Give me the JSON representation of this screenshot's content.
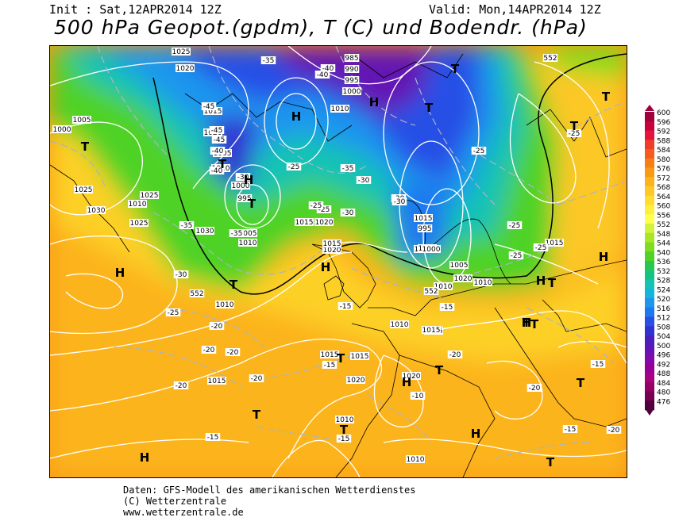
{
  "header": {
    "init": "Init : Sat,12APR2014 12Z",
    "valid": "Valid: Mon,14APR2014 12Z",
    "title": "500 hPa Geopot.(gpdm), T (C) und Bodendr. (hPa)"
  },
  "colorbar": {
    "levels": [
      "600",
      "596",
      "592",
      "588",
      "584",
      "580",
      "576",
      "572",
      "568",
      "564",
      "560",
      "556",
      "552",
      "548",
      "544",
      "540",
      "536",
      "532",
      "528",
      "524",
      "520",
      "516",
      "512",
      "508",
      "504",
      "500",
      "496",
      "492",
      "488",
      "484",
      "480",
      "476"
    ],
    "colors": [
      "#a0003c",
      "#c8003c",
      "#e6143c",
      "#f03c28",
      "#f55a1e",
      "#f87d14",
      "#fa9a14",
      "#fcb41e",
      "#fdc828",
      "#ffdc32",
      "#ffee3c",
      "#ffff50",
      "#d2f23c",
      "#aae628",
      "#82dc1e",
      "#50d228",
      "#28c850",
      "#14c382",
      "#14c3b4",
      "#14b4dc",
      "#1e96ee",
      "#1e78f0",
      "#2850e6",
      "#3232d2",
      "#4b1ebe",
      "#6414b4",
      "#820aaa",
      "#960096",
      "#aa0082",
      "#960064",
      "#780050",
      "#50003c"
    ]
  },
  "map_labels": {
    "highs": [
      "H",
      "H",
      "H",
      "H",
      "H",
      "H",
      "H",
      "H",
      "H",
      "H",
      "H"
    ],
    "lows": [
      "T",
      "T",
      "T",
      "T",
      "T",
      "T",
      "T",
      "T",
      "T",
      "T",
      "T",
      "T",
      "T",
      "T",
      "T",
      "T",
      "T"
    ],
    "isobars": [
      "1025",
      "1020",
      "1000",
      "1005",
      "1010",
      "1015",
      "1020",
      "1025",
      "1030",
      "985",
      "990",
      "995",
      "1000",
      "1010",
      "1005",
      "1010",
      "1000",
      "995",
      "1005",
      "1010",
      "1015",
      "1020",
      "1025",
      "1030",
      "1025",
      "1020",
      "1015",
      "1015",
      "1010",
      "1015",
      "1020",
      "1025",
      "1015",
      "1010",
      "1015",
      "1015",
      "1020",
      "1015",
      "1010",
      "1010",
      "1005",
      "1010",
      "1020",
      "1015",
      "995",
      "1000",
      "1005",
      "1010",
      "1015",
      "552",
      "552",
      "552"
    ],
    "temps": [
      "-35",
      "-40",
      "-40",
      "-45",
      "-45",
      "-45",
      "-40",
      "-40",
      "-35",
      "-30",
      "-30",
      "-25",
      "-35",
      "-35",
      "-30",
      "-30",
      "-25",
      "-25",
      "-25",
      "-25",
      "-20",
      "-15",
      "-15",
      "-15",
      "-30",
      "-30",
      "-25",
      "-25",
      "-20",
      "-20",
      "-20",
      "-20",
      "-15",
      "-15",
      "-10",
      "-15",
      "-15",
      "-20",
      "-15",
      "-25",
      "-25",
      "-20",
      "-20"
    ]
  },
  "footer": {
    "line1": "Daten: GFS-Modell des amerikanischen Wetterdienstes",
    "line2": "(C) Wetterzentrale",
    "line3": "www.wetterzentrale.de"
  }
}
